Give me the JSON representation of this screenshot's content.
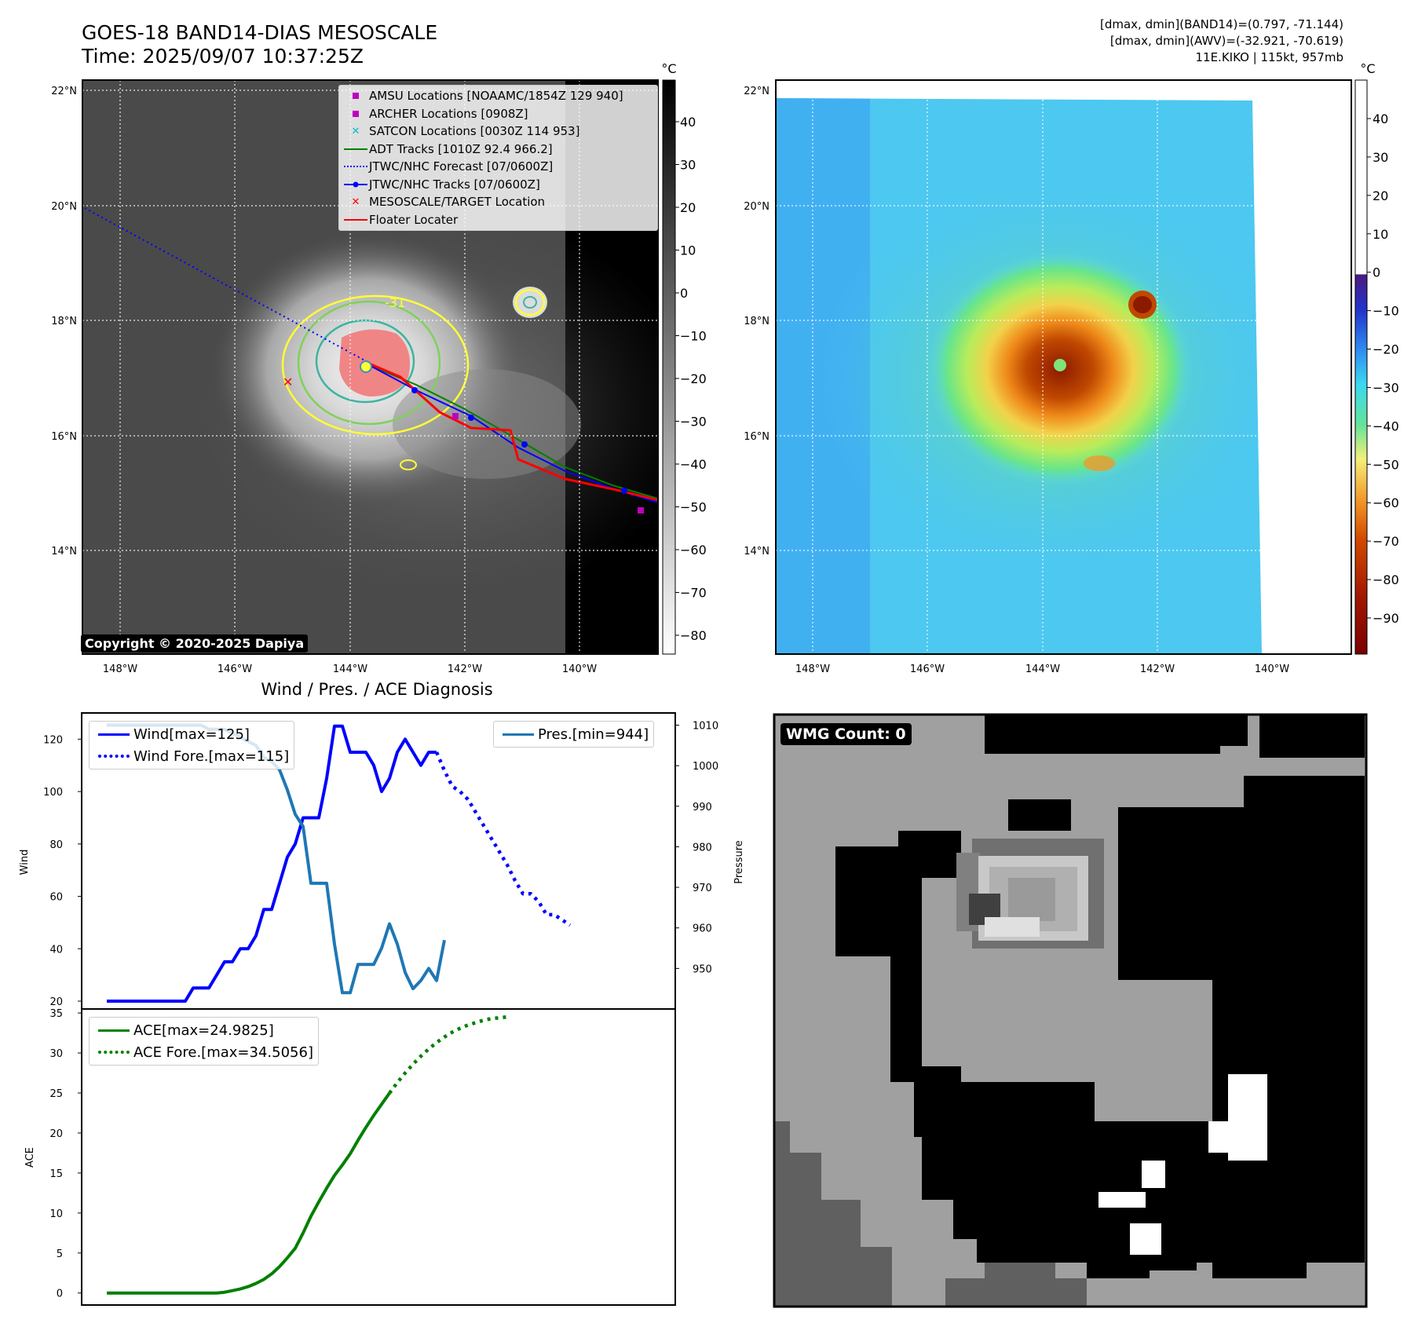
{
  "header": {
    "title_line1": "GOES-18 BAND14-DIAS MESOSCALE",
    "title_line2": "Time: 2025/09/07 10:37:25Z",
    "info_line1": "[dmax, dmin](BAND14)=(0.797, -71.144)",
    "info_line2": "[dmax, dmin](AWV)=(-32.921, -70.619)",
    "info_line3": "11E.KIKO | 115kt, 957mb"
  },
  "maps": {
    "lat_labels": [
      "22°N",
      "20°N",
      "18°N",
      "16°N",
      "14°N"
    ],
    "lon_labels": [
      "148°W",
      "146°W",
      "144°W",
      "142°W",
      "140°W"
    ],
    "ir_colorbar": {
      "unit": "°C",
      "ticks": [
        "40",
        "30",
        "20",
        "10",
        "0",
        "−10",
        "−20",
        "−30",
        "−40",
        "−50",
        "−60",
        "−70",
        "−80"
      ]
    },
    "awv_colorbar": {
      "unit": "°C",
      "ticks": [
        "40",
        "30",
        "20",
        "10",
        "0",
        "−10",
        "−20",
        "−30",
        "−40",
        "−50",
        "−60",
        "−70",
        "−80",
        "−90"
      ]
    },
    "contour_label": "-31",
    "copyright": "Copyright © 2020-2025 Dapiya",
    "legend": [
      {
        "label": "AMSU Locations [NOAAMC/1854Z 129 940]",
        "color": "#bf00bf",
        "symbol": "square"
      },
      {
        "label": "ARCHER Locations [0908Z]",
        "color": "#bf00bf",
        "symbol": "square"
      },
      {
        "label": "SATCON Locations [0030Z 114 953]",
        "color": "#00bfbf",
        "symbol": "x"
      },
      {
        "label": "ADT Tracks [1010Z 92.4 966.2]",
        "color": "#008000",
        "symbol": "line"
      },
      {
        "label": "JTWC/NHC Forecast [07/0600Z]",
        "color": "#0000ff",
        "symbol": "dotted"
      },
      {
        "label": "JTWC/NHC Tracks [07/0600Z]",
        "color": "#0000ff",
        "symbol": "line-dot"
      },
      {
        "label": "MESOSCALE/TARGET Location",
        "color": "#ff0000",
        "symbol": "x"
      },
      {
        "label": "Floater Locater",
        "color": "#ff0000",
        "symbol": "line"
      }
    ]
  },
  "chart_data": [
    {
      "type": "line",
      "title": "Wind / Pres. / ACE Diagnosis",
      "ylabel": "Wind",
      "y2label": "Pressure",
      "ylim": [
        17,
        130
      ],
      "y2lim": [
        940,
        1013
      ],
      "yticks": [
        20,
        40,
        60,
        80,
        100,
        120
      ],
      "y2ticks": [
        950,
        960,
        970,
        980,
        990,
        1000,
        1010
      ],
      "x_count": 70,
      "series": [
        {
          "name": "Wind[max=125]",
          "style": "solid",
          "color": "#0000ff",
          "axis": "left",
          "values": [
            20,
            20,
            20,
            20,
            20,
            20,
            20,
            20,
            20,
            20,
            20,
            25,
            25,
            25,
            30,
            35,
            35,
            40,
            40,
            45,
            55,
            55,
            65,
            75,
            80,
            90,
            90,
            90,
            105,
            125,
            125,
            115,
            115,
            115,
            110,
            100,
            105,
            115,
            120,
            115,
            110,
            115,
            115
          ]
        },
        {
          "name": "Wind Fore.[max=115]",
          "style": "dotted",
          "color": "#0000ff",
          "axis": "left",
          "x_start": 42,
          "values": [
            115,
            108,
            102,
            100,
            97,
            92,
            87,
            82,
            77,
            72,
            66,
            61,
            61,
            58,
            53,
            53,
            51,
            49
          ]
        },
        {
          "name": "Pres.[min=944]",
          "style": "solid",
          "color": "#1f77b4",
          "axis": "right",
          "values": [
            1010,
            1010,
            1010,
            1010,
            1010,
            1010,
            1010,
            1010,
            1010,
            1010,
            1010,
            1010,
            1010,
            1009,
            1009,
            1009,
            1008,
            1007,
            1006,
            1005,
            1002,
            1001,
            999,
            994,
            988,
            985,
            971,
            971,
            971,
            956,
            944,
            944,
            951,
            951,
            951,
            955,
            961,
            956,
            949,
            945,
            947,
            950,
            947,
            957
          ]
        },
        {
          "name": "ACE[max=24.9825]",
          "style": "solid",
          "color": "#008000",
          "axis": "left2",
          "values": [
            0,
            0,
            0,
            0,
            0,
            0,
            0,
            0,
            0,
            0,
            0,
            0,
            0,
            0,
            0,
            0.1,
            0.3,
            0.5,
            0.8,
            1.2,
            1.7,
            2.4,
            3.3,
            4.4,
            5.6,
            7.5,
            9.6,
            11.4,
            13.1,
            14.7,
            16,
            17.4,
            19.1,
            20.7,
            22.2,
            23.6,
            24.98
          ]
        },
        {
          "name": "ACE Fore.[max=34.5056]",
          "style": "dotted",
          "color": "#008000",
          "axis": "left2",
          "x_start": 36,
          "values": [
            24.98,
            26.3,
            27.5,
            28.6,
            29.6,
            30.5,
            31.3,
            32,
            32.6,
            33.1,
            33.5,
            33.8,
            34.1,
            34.3,
            34.4,
            34.5056
          ]
        }
      ],
      "ace_ylabel": "ACE",
      "ace_ylim": [
        -1.5,
        35.5
      ],
      "ace_yticks": [
        0,
        5,
        10,
        15,
        20,
        25,
        30,
        35
      ]
    }
  ],
  "wmg": {
    "badge": "WMG Count: 0"
  }
}
